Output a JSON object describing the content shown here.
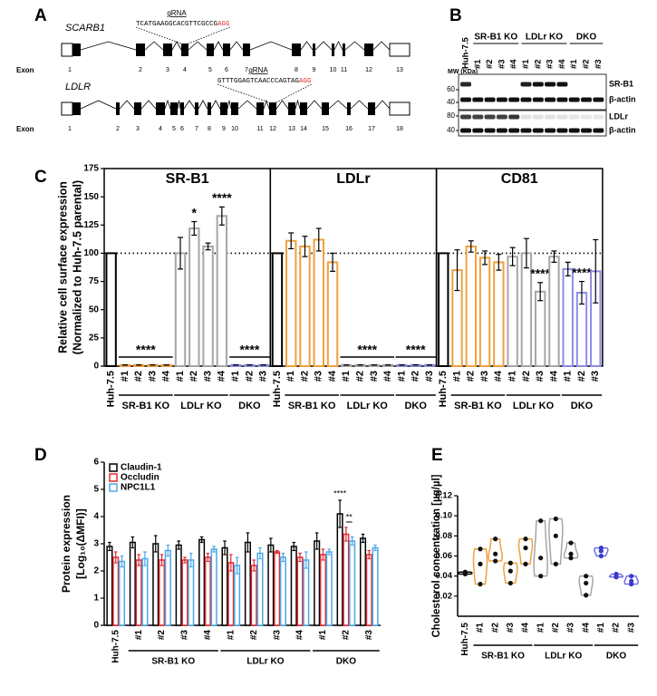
{
  "panel_labels": [
    "A",
    "B",
    "C",
    "D",
    "E"
  ],
  "gene_diagram": [
    {
      "gene": "SCARB1",
      "exon_label": "Exon",
      "grna_label": "gRNA",
      "grna_sequence": "TCATGAAGGCACGTTCGCCG",
      "pam": "AGG",
      "exons": [
        "1",
        "2",
        "3",
        "4",
        "5",
        "6",
        "7",
        "8",
        "9",
        "10",
        "11",
        "12",
        "13"
      ]
    },
    {
      "gene": "LDLR",
      "exon_label": "Exon",
      "grna_label": "gRNA",
      "grna_sequence": "GTTTGGAGTCAACCCAGTAG",
      "pam": "AGG",
      "exons": [
        "1",
        "2",
        "3",
        "4",
        "5",
        "6",
        "7",
        "8",
        "9",
        "10",
        "11",
        "12",
        "13",
        "14",
        "15",
        "16",
        "17",
        "18"
      ]
    }
  ],
  "blot": {
    "mw_label": "MW (KDa)",
    "lanes": [
      "Huh-7.5",
      "#1",
      "#2",
      "#3",
      "#4",
      "#1",
      "#2",
      "#3",
      "#4",
      "#1",
      "#2",
      "#3"
    ],
    "lane_groups": [
      "SR-B1 KO",
      "LDLr KO",
      "DKO"
    ],
    "panels": [
      {
        "markers": [
          60,
          40
        ],
        "bands": [
          "SR-B1",
          "β-actin"
        ]
      },
      {
        "markers": [
          80,
          40
        ],
        "bands": [
          "LDLr",
          "β-actin"
        ]
      }
    ]
  },
  "chart_data": [
    {
      "type": "bar",
      "title": "SR-B1",
      "y_label": [
        "Relative cell surface expression",
        "(Normalized to Huh-7.5 parental)"
      ],
      "categories": [
        "Huh-7.5",
        "#1",
        "#2",
        "#3",
        "#4",
        "#1",
        "#2",
        "#3",
        "#4",
        "#1",
        "#2",
        "#3"
      ],
      "groups": [
        "SR-B1 KO",
        "LDLr KO",
        "DKO"
      ],
      "values": [
        100,
        1,
        1,
        1,
        1,
        100,
        122,
        106,
        133,
        1,
        1,
        1
      ],
      "errors": [
        0,
        0,
        0,
        0,
        0,
        14,
        6,
        3,
        8,
        0,
        0,
        0
      ],
      "bar_colors": [
        "#000000",
        "#f0a040",
        "#f0a040",
        "#f0a040",
        "#f0a040",
        "#a6a6a6",
        "#a6a6a6",
        "#a6a6a6",
        "#a6a6a6",
        "#8c8ce6",
        "#8c8ce6",
        "#8c8ce6"
      ],
      "significance": [
        null,
        null,
        null,
        null,
        null,
        null,
        "*",
        null,
        "****",
        null,
        null,
        null
      ],
      "group_significance": [
        "****",
        null,
        "****"
      ],
      "reference_line": 100,
      "ylim": [
        0,
        175
      ],
      "yticks": [
        0,
        25,
        50,
        75,
        100,
        125,
        150,
        175
      ]
    },
    {
      "type": "bar",
      "title": "LDLr",
      "categories": [
        "Huh-7.5",
        "#1",
        "#2",
        "#3",
        "#4",
        "#1",
        "#2",
        "#3",
        "#4",
        "#1",
        "#2",
        "#3"
      ],
      "groups": [
        "SR-B1 KO",
        "LDLr KO",
        "DKO"
      ],
      "values": [
        100,
        111,
        106,
        112,
        92,
        1,
        1,
        1,
        1,
        1,
        1,
        1
      ],
      "errors": [
        0,
        7,
        9,
        10,
        8,
        0,
        0,
        0,
        0,
        0,
        0,
        0
      ],
      "bar_colors": [
        "#000000",
        "#f0a040",
        "#f0a040",
        "#f0a040",
        "#f0a040",
        "#a6a6a6",
        "#a6a6a6",
        "#a6a6a6",
        "#a6a6a6",
        "#8c8ce6",
        "#8c8ce6",
        "#8c8ce6"
      ],
      "significance": [
        null,
        null,
        null,
        null,
        null,
        null,
        null,
        null,
        null,
        null,
        null,
        null
      ],
      "group_significance": [
        null,
        "****",
        "****"
      ],
      "reference_line": 100,
      "ylim": [
        0,
        175
      ]
    },
    {
      "type": "bar",
      "title": "CD81",
      "categories": [
        "Huh-7.5",
        "#1",
        "#2",
        "#3",
        "#4",
        "#1",
        "#2",
        "#3",
        "#4",
        "#1",
        "#2",
        "#3"
      ],
      "groups": [
        "SR-B1 KO",
        "LDLr KO",
        "DKO"
      ],
      "values": [
        100,
        85,
        106,
        96,
        92,
        97,
        100,
        66,
        97,
        86,
        65,
        84
      ],
      "errors": [
        0,
        18,
        5,
        6,
        7,
        8,
        13,
        8,
        5,
        6,
        10,
        28
      ],
      "bar_colors": [
        "#000000",
        "#f0a040",
        "#f0a040",
        "#f0a040",
        "#f0a040",
        "#a6a6a6",
        "#a6a6a6",
        "#a6a6a6",
        "#a6a6a6",
        "#8c8ce6",
        "#8c8ce6",
        "#8c8ce6"
      ],
      "significance": [
        null,
        null,
        null,
        null,
        null,
        null,
        null,
        "****",
        null,
        null,
        "****",
        null
      ],
      "group_significance": [
        null,
        null,
        null
      ],
      "reference_line": 100,
      "ylim": [
        0,
        175
      ]
    },
    {
      "type": "grouped_bar",
      "y_label": [
        "Protein expression",
        "[Log₁₀(ΔMFI)]"
      ],
      "categories": [
        "Huh-7.5",
        "#1",
        "#2",
        "#3",
        "#4",
        "#1",
        "#2",
        "#3",
        "#4",
        "#1",
        "#2",
        "#3"
      ],
      "groups": [
        "SR-B1 KO",
        "LDLr KO",
        "DKO"
      ],
      "series": [
        {
          "name": "Claudin-1",
          "color": "#000000",
          "values": [
            2.9,
            3.05,
            3.0,
            2.95,
            3.15,
            2.85,
            3.05,
            2.95,
            2.9,
            3.1,
            4.1,
            3.2
          ],
          "errors": [
            0.15,
            0.2,
            0.3,
            0.15,
            0.1,
            0.25,
            0.35,
            0.25,
            0.15,
            0.3,
            0.5,
            0.15
          ],
          "significance": [
            null,
            null,
            null,
            null,
            null,
            null,
            null,
            null,
            null,
            null,
            "****",
            null
          ]
        },
        {
          "name": "Occludin",
          "color": "#e0282e",
          "values": [
            2.5,
            2.4,
            2.4,
            2.4,
            2.5,
            2.3,
            2.2,
            2.7,
            2.5,
            2.6,
            3.35,
            2.6
          ],
          "errors": [
            0.2,
            0.2,
            0.2,
            0.1,
            0.15,
            0.3,
            0.2,
            0.05,
            0.15,
            0.2,
            0.25,
            0.15
          ],
          "significance": [
            null,
            null,
            null,
            null,
            null,
            null,
            null,
            null,
            null,
            null,
            "**",
            null
          ]
        },
        {
          "name": "NPC1L1",
          "color": "#4aa8e8",
          "values": [
            2.35,
            2.45,
            2.75,
            2.4,
            2.8,
            2.2,
            2.65,
            2.5,
            2.4,
            2.7,
            3.1,
            2.85
          ],
          "errors": [
            0.2,
            0.25,
            0.2,
            0.25,
            0.1,
            0.3,
            0.2,
            0.15,
            0.3,
            0.1,
            0.15,
            0.1
          ],
          "significance": [
            null,
            null,
            null,
            null,
            null,
            null,
            null,
            null,
            null,
            null,
            null,
            null
          ]
        }
      ],
      "legend": "top-left",
      "ylim": [
        0,
        6
      ],
      "yticks": [
        0,
        1,
        2,
        3,
        4,
        5,
        6
      ]
    },
    {
      "type": "violin",
      "y_label": "Cholesterol concentration [µg/µl]",
      "categories": [
        "Huh-7.5",
        "#1",
        "#2",
        "#3",
        "#4",
        "#1",
        "#2",
        "#3",
        "#4",
        "#1",
        "#2",
        "#3"
      ],
      "groups": [
        "SR-B1 KO",
        "LDLr KO",
        "DKO"
      ],
      "colors": [
        "#000000",
        "#f0a040",
        "#f0a040",
        "#f0a040",
        "#f0a040",
        "#a6a6a6",
        "#a6a6a6",
        "#a6a6a6",
        "#a6a6a6",
        "#7070e0",
        "#7070e0",
        "#7070e0"
      ],
      "values": [
        [
          0.042,
          0.043,
          0.044
        ],
        [
          0.067,
          0.052,
          0.032
        ],
        [
          0.077,
          0.055,
          0.062
        ],
        [
          0.053,
          0.045,
          0.033
        ],
        [
          0.077,
          0.068,
          0.052
        ],
        [
          0.095,
          0.058,
          0.04
        ],
        [
          0.097,
          0.08,
          0.052
        ],
        [
          0.073,
          0.062,
          0.058
        ],
        [
          0.04,
          0.033,
          0.021
        ],
        [
          0.068,
          0.065,
          0.06
        ],
        [
          0.042,
          0.04,
          0.039
        ],
        [
          0.04,
          0.035,
          0.032
        ]
      ],
      "ylim": [
        0,
        0.12
      ],
      "yticks": [
        0.02,
        0.04,
        0.06,
        0.08,
        {
          "value": 0.1,
          "label": "0.10"
        },
        0.12
      ]
    }
  ]
}
